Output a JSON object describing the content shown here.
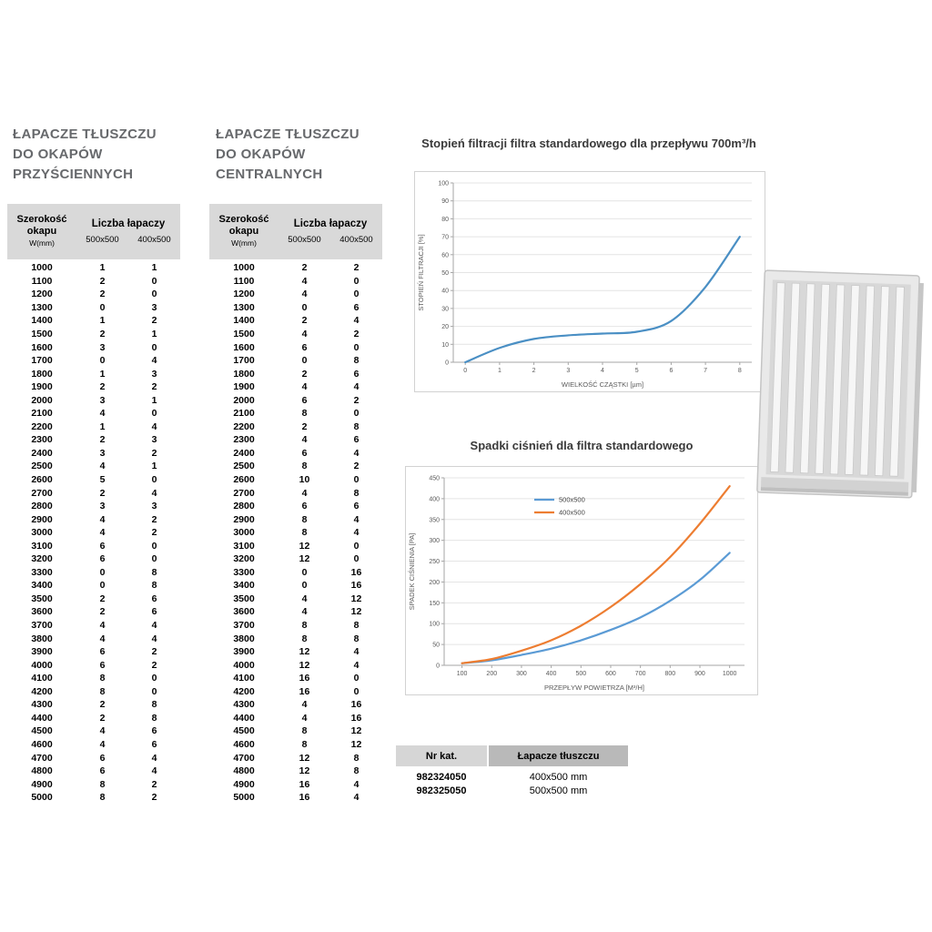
{
  "tables": {
    "wall": {
      "title_lines": [
        "ŁAPACZE TŁUSZCZU",
        "DO OKAPÓW",
        "PRZYŚCIENNYCH"
      ],
      "header": {
        "col1": [
          "Szerokość",
          "okapu"
        ],
        "col1_unit": "W(mm)",
        "group": "Liczba łapaczy",
        "subs": [
          "500x500",
          "400x500"
        ]
      },
      "rows": [
        [
          1000,
          1,
          1
        ],
        [
          1100,
          2,
          0
        ],
        [
          1200,
          2,
          0
        ],
        [
          1300,
          0,
          3
        ],
        [
          1400,
          1,
          2
        ],
        [
          1500,
          2,
          1
        ],
        [
          1600,
          3,
          0
        ],
        [
          1700,
          0,
          4
        ],
        [
          1800,
          1,
          3
        ],
        [
          1900,
          2,
          2
        ],
        [
          2000,
          3,
          1
        ],
        [
          2100,
          4,
          0
        ],
        [
          2200,
          1,
          4
        ],
        [
          2300,
          2,
          3
        ],
        [
          2400,
          3,
          2
        ],
        [
          2500,
          4,
          1
        ],
        [
          2600,
          5,
          0
        ],
        [
          2700,
          2,
          4
        ],
        [
          2800,
          3,
          3
        ],
        [
          2900,
          4,
          2
        ],
        [
          3000,
          4,
          2
        ],
        [
          3100,
          6,
          0
        ],
        [
          3200,
          6,
          0
        ],
        [
          3300,
          0,
          8
        ],
        [
          3400,
          0,
          8
        ],
        [
          3500,
          2,
          6
        ],
        [
          3600,
          2,
          6
        ],
        [
          3700,
          4,
          4
        ],
        [
          3800,
          4,
          4
        ],
        [
          3900,
          6,
          2
        ],
        [
          4000,
          6,
          2
        ],
        [
          4100,
          8,
          0
        ],
        [
          4200,
          8,
          0
        ],
        [
          4300,
          2,
          8
        ],
        [
          4400,
          2,
          8
        ],
        [
          4500,
          4,
          6
        ],
        [
          4600,
          4,
          6
        ],
        [
          4700,
          6,
          4
        ],
        [
          4800,
          6,
          4
        ],
        [
          4900,
          8,
          2
        ],
        [
          5000,
          8,
          2
        ]
      ]
    },
    "central": {
      "title_lines": [
        "ŁAPACZE TŁUSZCZU",
        "DO OKAPÓW",
        "CENTRALNYCH"
      ],
      "header": {
        "col1": [
          "Szerokość",
          "okapu"
        ],
        "col1_unit": "W(mm)",
        "group": "Liczba łapaczy",
        "subs": [
          "500x500",
          "400x500"
        ]
      },
      "rows": [
        [
          1000,
          2,
          2
        ],
        [
          1100,
          4,
          0
        ],
        [
          1200,
          4,
          0
        ],
        [
          1300,
          0,
          6
        ],
        [
          1400,
          2,
          4
        ],
        [
          1500,
          4,
          2
        ],
        [
          1600,
          6,
          0
        ],
        [
          1700,
          0,
          8
        ],
        [
          1800,
          2,
          6
        ],
        [
          1900,
          4,
          4
        ],
        [
          2000,
          6,
          2
        ],
        [
          2100,
          8,
          0
        ],
        [
          2200,
          2,
          8
        ],
        [
          2300,
          4,
          6
        ],
        [
          2400,
          6,
          4
        ],
        [
          2500,
          8,
          2
        ],
        [
          2600,
          10,
          0
        ],
        [
          2700,
          4,
          8
        ],
        [
          2800,
          6,
          6
        ],
        [
          2900,
          8,
          4
        ],
        [
          3000,
          8,
          4
        ],
        [
          3100,
          12,
          0
        ],
        [
          3200,
          12,
          0
        ],
        [
          3300,
          0,
          16
        ],
        [
          3400,
          0,
          16
        ],
        [
          3500,
          4,
          12
        ],
        [
          3600,
          4,
          12
        ],
        [
          3700,
          8,
          8
        ],
        [
          3800,
          8,
          8
        ],
        [
          3900,
          12,
          4
        ],
        [
          4000,
          12,
          4
        ],
        [
          4100,
          16,
          0
        ],
        [
          4200,
          16,
          0
        ],
        [
          4300,
          4,
          16
        ],
        [
          4400,
          4,
          16
        ],
        [
          4500,
          8,
          12
        ],
        [
          4600,
          8,
          12
        ],
        [
          4700,
          12,
          8
        ],
        [
          4800,
          12,
          8
        ],
        [
          4900,
          16,
          4
        ],
        [
          5000,
          16,
          4
        ]
      ]
    }
  },
  "chart_data": [
    {
      "type": "line",
      "title": "Stopień filtracji filtra standardowego dla przepływu 700m³/h",
      "xlabel": "WIELKOŚĆ CZĄSTKI [µm]",
      "ylabel": "STOPIEŃ FILTRACJI [%]",
      "x": [
        0,
        1,
        2,
        3,
        4,
        5,
        6,
        7,
        8
      ],
      "xticks": [
        0,
        1,
        2,
        3,
        4,
        5,
        6,
        7,
        8
      ],
      "xlim": [
        -0.35,
        8.35
      ],
      "ylim": [
        0,
        100
      ],
      "ytick_step": 10,
      "grid": "horizontal",
      "legend": false,
      "series": [
        {
          "name": "filtracja",
          "color": "#4a8fc4",
          "values": [
            0,
            8,
            13,
            15,
            16,
            17,
            23,
            42,
            70
          ]
        }
      ]
    },
    {
      "type": "line",
      "title": "Spadki ciśnień dla filtra standardowego",
      "xlabel": "PRZEPŁYW POWIETRZA [M³/H]",
      "ylabel": "SPADEK CIŚNIENIA [PA]",
      "x": [
        100,
        200,
        300,
        400,
        500,
        600,
        700,
        800,
        900,
        1000
      ],
      "xticks": [
        100,
        200,
        300,
        400,
        500,
        600,
        700,
        800,
        900,
        1000
      ],
      "xlim": [
        40,
        1050
      ],
      "ylim": [
        0,
        450
      ],
      "ytick_step": 50,
      "grid": "horizontal",
      "legend": true,
      "legend_position": "top-center",
      "series": [
        {
          "name": "500x500",
          "color": "#5b9bd5",
          "values": [
            5,
            12,
            25,
            40,
            60,
            85,
            115,
            155,
            205,
            270
          ]
        },
        {
          "name": "400x500",
          "color": "#ed7d31",
          "values": [
            5,
            15,
            35,
            60,
            95,
            140,
            195,
            260,
            340,
            430
          ]
        }
      ]
    }
  ],
  "catalog": {
    "headers": [
      "Nr kat.",
      "Łapacze tłuszczu"
    ],
    "rows": [
      [
        "982324050",
        "400x500 mm"
      ],
      [
        "982325050",
        "500x500 mm"
      ]
    ]
  },
  "images": {
    "filter": "baffle-grease-filter-photo"
  }
}
